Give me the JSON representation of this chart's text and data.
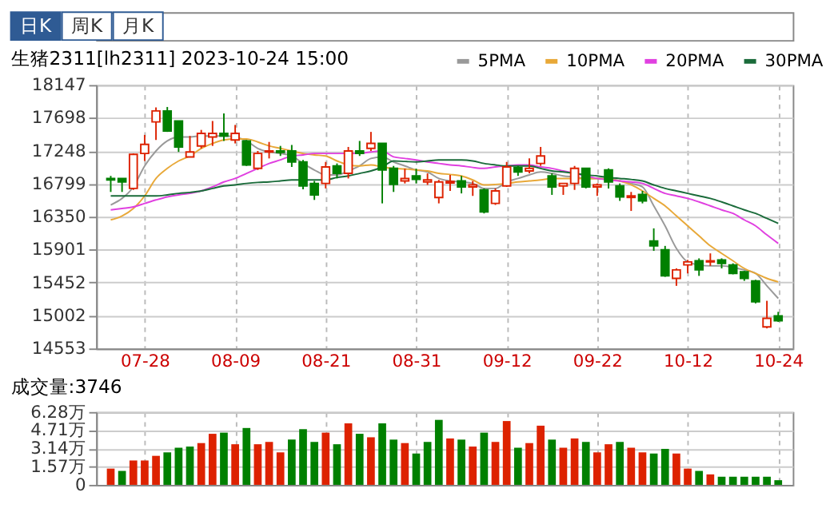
{
  "chart_data": [
    {
      "type": "candlestick",
      "title": "生猪2311[lh2311] 2023-10-24 15:00",
      "annotations": [
        "日K",
        "周K",
        "月K"
      ],
      "categories": [
        null,
        null,
        null,
        "07-28",
        null,
        null,
        null,
        null,
        null,
        null,
        null,
        "08-09",
        null,
        null,
        null,
        null,
        null,
        null,
        null,
        "08-21",
        null,
        null,
        null,
        null,
        null,
        null,
        null,
        "08-31",
        null,
        null,
        null,
        null,
        null,
        null,
        null,
        "09-12",
        null,
        null,
        null,
        null,
        null,
        null,
        null,
        "09-22",
        null,
        null,
        null,
        null,
        null,
        null,
        null,
        "10-12",
        null,
        null,
        null,
        null,
        null,
        null,
        null,
        "10-24"
      ],
      "ohlc": [
        [
          16872,
          16907,
          16688,
          16852
        ],
        [
          16872,
          16872,
          16688,
          16825
        ],
        [
          16736,
          17213,
          16716,
          17200
        ],
        [
          17213,
          17466,
          17111,
          17336
        ],
        [
          17643,
          17841,
          17397,
          17793
        ],
        [
          17793,
          17847,
          17507,
          17520
        ],
        [
          17656,
          17656,
          17234,
          17302
        ],
        [
          17166,
          17452,
          17166,
          17234
        ],
        [
          17316,
          17534,
          17282,
          17486
        ],
        [
          17438,
          17656,
          17316,
          17486
        ],
        [
          17486,
          17759,
          17384,
          17452
        ],
        [
          17397,
          17602,
          17350,
          17486
        ],
        [
          17384,
          17397,
          17043,
          17057
        ],
        [
          17009,
          17247,
          16988,
          17213
        ],
        [
          17234,
          17370,
          17145,
          17247
        ],
        [
          17247,
          17316,
          17179,
          17227
        ],
        [
          17247,
          17329,
          17029,
          17097
        ],
        [
          17097,
          17125,
          16723,
          16770
        ],
        [
          16804,
          16838,
          16579,
          16648
        ],
        [
          16804,
          17097,
          16736,
          17029
        ],
        [
          17043,
          17077,
          16872,
          16941
        ],
        [
          16941,
          17302,
          16872,
          17247
        ],
        [
          17247,
          17384,
          17179,
          17213
        ],
        [
          17282,
          17507,
          17247,
          17350
        ],
        [
          17350,
          17350,
          16532,
          16988
        ],
        [
          17009,
          17043,
          16688,
          16791
        ],
        [
          16838,
          17005,
          16804,
          16872
        ],
        [
          16907,
          17005,
          16804,
          16859
        ],
        [
          16825,
          16941,
          16784,
          16852
        ],
        [
          16613,
          16852,
          16532,
          16825
        ],
        [
          16811,
          16920,
          16702,
          16832
        ],
        [
          16838,
          16907,
          16668,
          16757
        ],
        [
          16757,
          16838,
          16634,
          16784
        ],
        [
          16716,
          16736,
          16395,
          16416
        ],
        [
          16532,
          16736,
          16511,
          16702
        ],
        [
          16770,
          17097,
          16757,
          17029
        ],
        [
          17022,
          17043,
          16907,
          16961
        ],
        [
          16975,
          17145,
          16941,
          17009
        ],
        [
          17077,
          17302,
          17043,
          17179
        ],
        [
          16907,
          16941,
          16648,
          16757
        ],
        [
          16770,
          16804,
          16648,
          16804
        ],
        [
          16804,
          17043,
          16716,
          17009
        ],
        [
          17009,
          17009,
          16736,
          16757
        ],
        [
          16757,
          16804,
          16634,
          16784
        ],
        [
          16988,
          17009,
          16736,
          16825
        ],
        [
          16770,
          16804,
          16566,
          16620
        ],
        [
          16613,
          16688,
          16429,
          16634
        ],
        [
          16654,
          16702,
          16532,
          16566
        ],
        [
          16020,
          16191,
          15884,
          15952
        ],
        [
          15898,
          15952,
          15530,
          15543
        ],
        [
          15509,
          15645,
          15407,
          15625
        ],
        [
          15693,
          15761,
          15577,
          15734
        ],
        [
          15748,
          15782,
          15543,
          15625
        ],
        [
          15734,
          15850,
          15680,
          15748
        ],
        [
          15761,
          15782,
          15645,
          15714
        ],
        [
          15693,
          15714,
          15564,
          15577
        ],
        [
          15598,
          15611,
          15475,
          15509
        ],
        [
          15475,
          15489,
          15168,
          15189
        ],
        [
          14848,
          15203,
          14827,
          14964
        ],
        [
          14998,
          15052,
          14916,
          14930
        ]
      ],
      "colors": [
        "#008000",
        "#008000",
        "#dd2200",
        "#dd2200",
        "#dd2200",
        "#008000",
        "#008000",
        "#dd2200",
        "#dd2200",
        "#dd2200",
        "#008000",
        "#dd2200",
        "#008000",
        "#dd2200",
        "#dd2200",
        "#008000",
        "#008000",
        "#008000",
        "#008000",
        "#dd2200",
        "#008000",
        "#dd2200",
        "#008000",
        "#dd2200",
        "#008000",
        "#008000",
        "#dd2200",
        "#008000",
        "#dd2200",
        "#dd2200",
        "#dd2200",
        "#008000",
        "#dd2200",
        "#008000",
        "#dd2200",
        "#dd2200",
        "#008000",
        "#dd2200",
        "#dd2200",
        "#008000",
        "#dd2200",
        "#dd2200",
        "#008000",
        "#dd2200",
        "#008000",
        "#008000",
        "#dd2200",
        "#008000",
        "#008000",
        "#008000",
        "#dd2200",
        "#dd2200",
        "#008000",
        "#dd2200",
        "#008000",
        "#008000",
        "#008000",
        "#008000",
        "#dd2200",
        "#008000"
      ],
      "series": [
        {
          "name": "5PMA",
          "type": "line",
          "color": "#999999",
          "values": [
            16511,
            16600,
            16757,
            17043,
            17247,
            17384,
            17438,
            17438,
            17452,
            17452,
            17452,
            17438,
            17384,
            17282,
            17234,
            17213,
            17179,
            17077,
            16988,
            16920,
            16920,
            16975,
            17043,
            17145,
            17166,
            17097,
            17043,
            16988,
            16961,
            16872,
            16838,
            16825,
            16804,
            16736,
            16736,
            16825,
            16872,
            16920,
            16961,
            16941,
            16907,
            16893,
            16872,
            16872,
            16872,
            16838,
            16804,
            16757,
            16498,
            16225,
            15918,
            15734,
            15693,
            15679,
            15679,
            15659,
            15625,
            15577,
            15407,
            15236
          ]
        },
        {
          "name": "10PMA",
          "type": "line",
          "color": "#e8a838",
          "values": [
            16307,
            16361,
            16463,
            16634,
            16872,
            17009,
            17111,
            17179,
            17282,
            17350,
            17397,
            17411,
            17411,
            17370,
            17316,
            17282,
            17247,
            17213,
            17193,
            17179,
            17111,
            17057,
            17043,
            17057,
            17029,
            17009,
            17002,
            16988,
            16975,
            16941,
            16927,
            16907,
            16852,
            16784,
            16791,
            16804,
            16825,
            16838,
            16852,
            16872,
            16872,
            16872,
            16872,
            16872,
            16859,
            16838,
            16784,
            16702,
            16600,
            16498,
            16361,
            16225,
            16089,
            15952,
            15850,
            15748,
            15645,
            15577,
            15509,
            15461
          ]
        },
        {
          "name": "20PMA",
          "type": "line",
          "color": "#e040e0",
          "values": [
            16443,
            16463,
            16484,
            16532,
            16579,
            16620,
            16648,
            16668,
            16702,
            16757,
            16825,
            16872,
            16941,
            17009,
            17077,
            17125,
            17179,
            17193,
            17213,
            17213,
            17213,
            17213,
            17213,
            17234,
            17247,
            17166,
            17145,
            17125,
            17097,
            17077,
            17057,
            17043,
            17022,
            17009,
            17029,
            17043,
            17057,
            17057,
            17029,
            17009,
            16975,
            16941,
            16907,
            16872,
            16852,
            16838,
            16825,
            16804,
            16736,
            16668,
            16634,
            16600,
            16552,
            16498,
            16443,
            16395,
            16307,
            16225,
            16102,
            15986
          ]
        },
        {
          "name": "30PMA",
          "type": "line",
          "color": "#1a6b3a",
          "values": [
            16634,
            16634,
            16634,
            16634,
            16634,
            16648,
            16668,
            16682,
            16702,
            16736,
            16770,
            16784,
            16804,
            16818,
            16825,
            16838,
            16852,
            16852,
            16852,
            16852,
            16886,
            16907,
            16941,
            16975,
            17029,
            17111,
            17104,
            17097,
            17111,
            17125,
            17125,
            17125,
            17111,
            17077,
            17057,
            17043,
            17043,
            17043,
            17009,
            16975,
            16961,
            16941,
            16920,
            16907,
            16886,
            16872,
            16859,
            16838,
            16784,
            16736,
            16702,
            16668,
            16634,
            16600,
            16552,
            16498,
            16443,
            16395,
            16327,
            16259
          ]
        }
      ],
      "ylim": [
        14553,
        18147
      ],
      "yticks": [
        14553,
        15002,
        15452,
        15901,
        16350,
        16799,
        17248,
        17698,
        18147
      ],
      "grid": true,
      "legend": "top right"
    },
    {
      "type": "bar",
      "title": "成交量:3746",
      "tick_labels": "y",
      "categories": [
        null,
        null,
        null,
        null,
        null,
        null,
        null,
        null,
        null,
        null,
        null,
        null,
        null,
        null,
        null,
        null,
        null,
        null,
        null,
        null,
        null,
        null,
        null,
        null,
        null,
        null,
        null,
        null,
        null,
        null,
        null,
        null,
        null,
        null,
        null,
        null,
        null,
        null,
        null,
        null,
        null,
        null,
        null,
        null,
        null,
        null,
        null,
        null,
        null,
        null,
        null,
        null,
        null,
        null,
        null,
        null,
        null,
        null,
        null,
        null
      ],
      "values": [
        1.4,
        1.2,
        2.1,
        2.1,
        2.5,
        2.8,
        3.2,
        3.3,
        3.6,
        4.4,
        4.5,
        3.5,
        4.9,
        3.5,
        3.7,
        2.8,
        3.9,
        4.8,
        3.7,
        4.5,
        3.5,
        5.3,
        4.4,
        4.1,
        5.3,
        3.9,
        3.6,
        2.7,
        3.7,
        5.6,
        4.0,
        3.9,
        3.3,
        4.5,
        3.7,
        5.5,
        3.2,
        3.6,
        5.1,
        3.9,
        3.2,
        4.0,
        3.7,
        2.8,
        3.5,
        3.7,
        3.2,
        2.8,
        2.7,
        3.1,
        2.7,
        1.4,
        1.2,
        0.9,
        0.7,
        0.7,
        0.7,
        0.7,
        0.7,
        0.4
      ],
      "colors": [
        "#dd2200",
        "#008000",
        "#dd2200",
        "#dd2200",
        "#dd2200",
        "#008000",
        "#008000",
        "#008000",
        "#dd2200",
        "#dd2200",
        "#008000",
        "#dd2200",
        "#008000",
        "#dd2200",
        "#dd2200",
        "#dd2200",
        "#008000",
        "#008000",
        "#008000",
        "#dd2200",
        "#008000",
        "#dd2200",
        "#008000",
        "#dd2200",
        "#008000",
        "#008000",
        "#dd2200",
        "#008000",
        "#008000",
        "#008000",
        "#dd2200",
        "#008000",
        "#dd2200",
        "#008000",
        "#dd2200",
        "#dd2200",
        "#008000",
        "#dd2200",
        "#dd2200",
        "#008000",
        "#dd2200",
        "#dd2200",
        "#008000",
        "#dd2200",
        "#dd2200",
        "#008000",
        "#dd2200",
        "#dd2200",
        "#008000",
        "#008000",
        "#dd2200",
        "#dd2200",
        "#008000",
        "#dd2200",
        "#008000",
        "#008000",
        "#008000",
        "#008000",
        "#008000",
        "#008000"
      ],
      "ylim": [
        0,
        6.28
      ],
      "yticks": [
        0,
        {
          "value": 1.57,
          "label": "1.57万"
        },
        {
          "value": 3.14,
          "label": "3.14万"
        },
        {
          "value": 4.71,
          "label": "4.71万"
        },
        {
          "value": 6.28,
          "label": "6.28万"
        }
      ],
      "grid": true
    }
  ]
}
